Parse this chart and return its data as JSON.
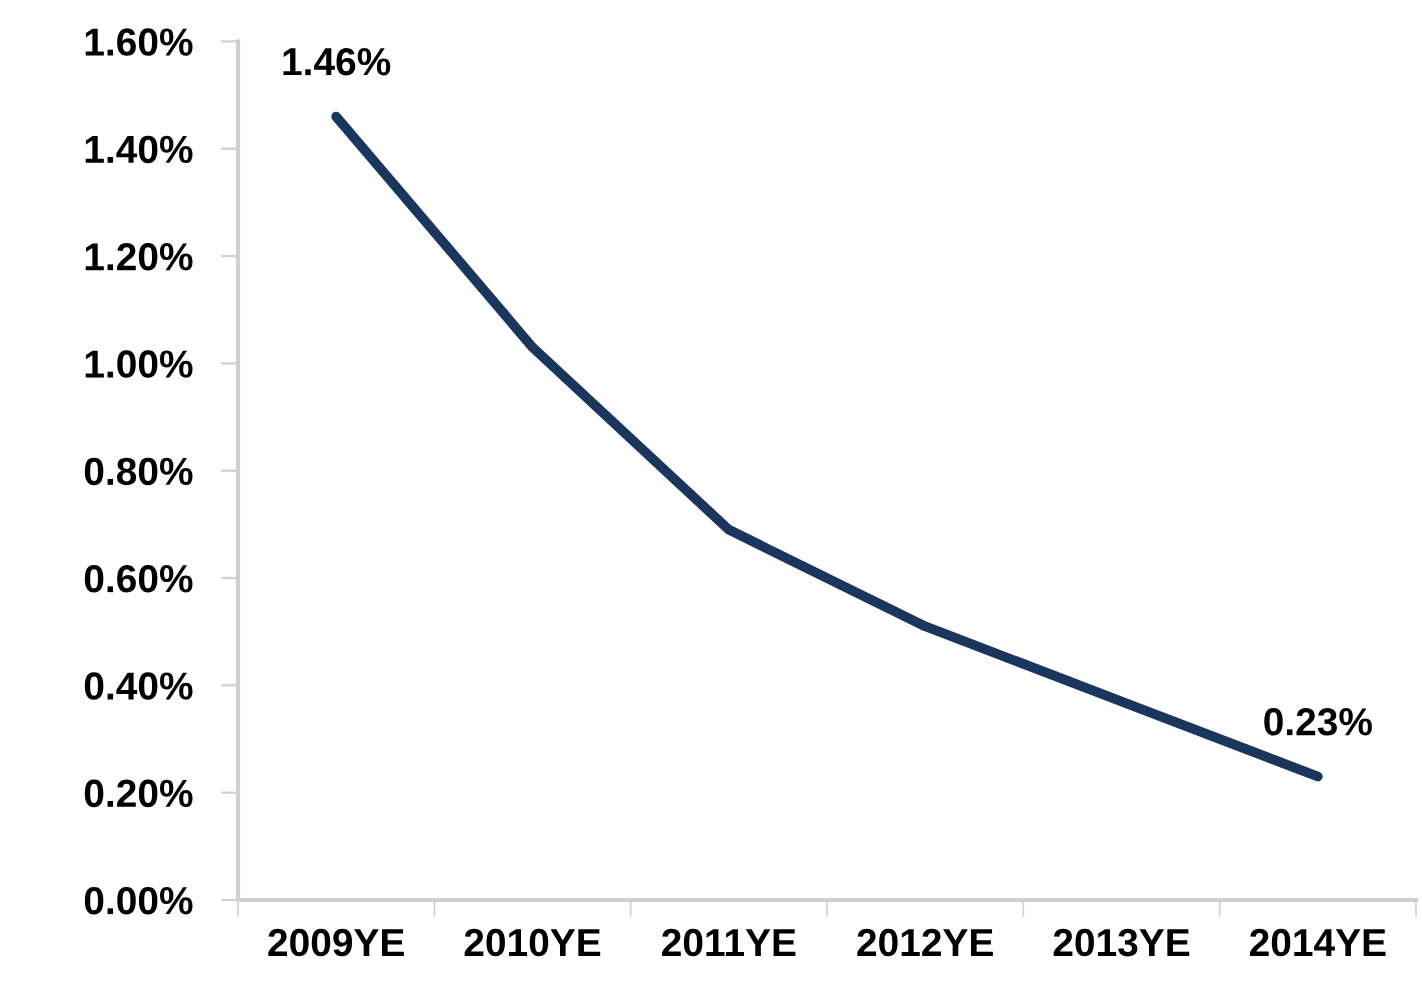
{
  "chart_data": {
    "type": "line",
    "categories": [
      "2009YE",
      "2010YE",
      "2011YE",
      "2012YE",
      "2013YE",
      "2014YE"
    ],
    "series": [
      {
        "color": "#1b365d",
        "values": [
          1.46,
          1.03,
          0.69,
          0.51,
          0.37,
          0.23
        ],
        "value_labels": [
          "1.46%",
          null,
          null,
          null,
          null,
          "0.23%"
        ]
      }
    ],
    "ylim": [
      0,
      1.6
    ],
    "yticks": [
      {
        "value": 0,
        "label": "0.00%"
      },
      {
        "value": 0.2,
        "label": "0.20%"
      },
      {
        "value": 0.4,
        "label": "0.40%"
      },
      {
        "value": 0.6,
        "label": "0.60%"
      },
      {
        "value": 0.8,
        "label": "0.80%"
      },
      {
        "value": 1.0,
        "label": "1.00%"
      },
      {
        "value": 1.2,
        "label": "1.20%"
      },
      {
        "value": 1.4,
        "label": "1.40%"
      },
      {
        "value": 1.6,
        "label": "1.60%"
      }
    ],
    "grid": false,
    "legend": false,
    "marker": "none",
    "line_style": "solid"
  }
}
